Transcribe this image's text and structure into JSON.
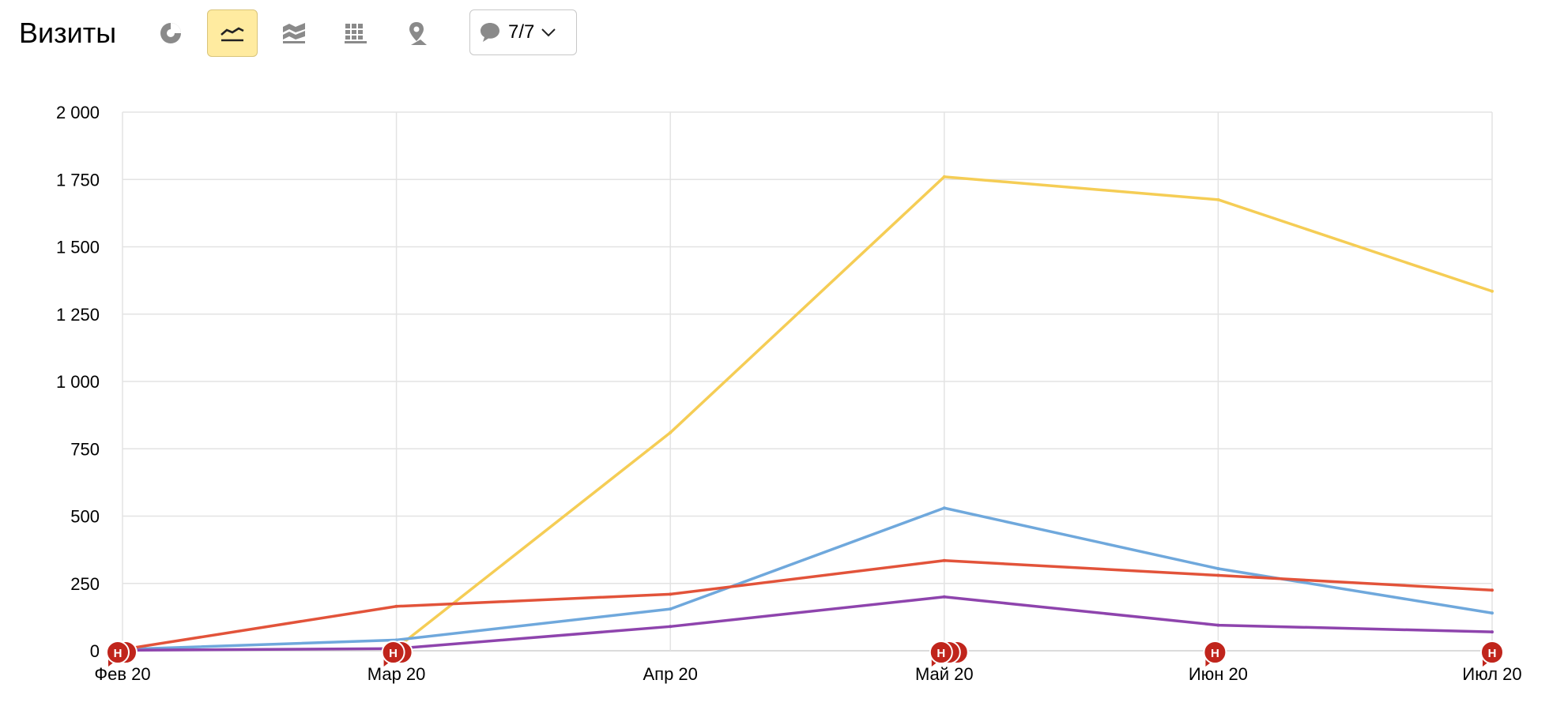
{
  "toolbar": {
    "title": "Визиты",
    "views": [
      {
        "id": "pie",
        "icon": "pie-chart-icon",
        "active": false
      },
      {
        "id": "line",
        "icon": "line-chart-icon",
        "active": true
      },
      {
        "id": "area",
        "icon": "area-chart-icon",
        "active": false
      },
      {
        "id": "bar",
        "icon": "bar-chart-icon",
        "active": false
      },
      {
        "id": "map",
        "icon": "map-pin-icon",
        "active": false
      }
    ],
    "notes_label": "7/7",
    "notes_icon": "comment-bubble-icon"
  },
  "chart_data": {
    "type": "line",
    "categories": [
      "Фев 20",
      "Мар 20",
      "Апр 20",
      "Май 20",
      "Июн 20",
      "Июл 20"
    ],
    "ylim": [
      0,
      2000
    ],
    "yticks": [
      0,
      250,
      500,
      750,
      1000,
      1250,
      1500,
      1750,
      2000
    ],
    "ytick_labels": [
      "0",
      "250",
      "500",
      "750",
      "1 000",
      "1 250",
      "1 500",
      "1 750",
      "2 000"
    ],
    "grid": true,
    "series": [
      {
        "color": "#f5cd55",
        "values": [
          null,
          10,
          810,
          1760,
          1675,
          1335
        ]
      },
      {
        "color": "#6fa8dc",
        "values": [
          5,
          40,
          155,
          530,
          305,
          140
        ]
      },
      {
        "color": "#e2533a",
        "values": [
          5,
          165,
          210,
          335,
          280,
          225
        ]
      },
      {
        "color": "#8e44ad",
        "values": [
          2,
          8,
          90,
          200,
          95,
          70
        ]
      }
    ],
    "annotations": [
      {
        "category": "Фев 20",
        "count": 2,
        "label": "Н"
      },
      {
        "category": "Мар 20",
        "count": 2,
        "label": "Н"
      },
      {
        "category": "Май 20",
        "count": 3,
        "label": "Н"
      },
      {
        "category": "Июн 20",
        "count": 1,
        "label": "Н"
      },
      {
        "category": "Июл 20",
        "count": 1,
        "label": "Н"
      }
    ]
  }
}
